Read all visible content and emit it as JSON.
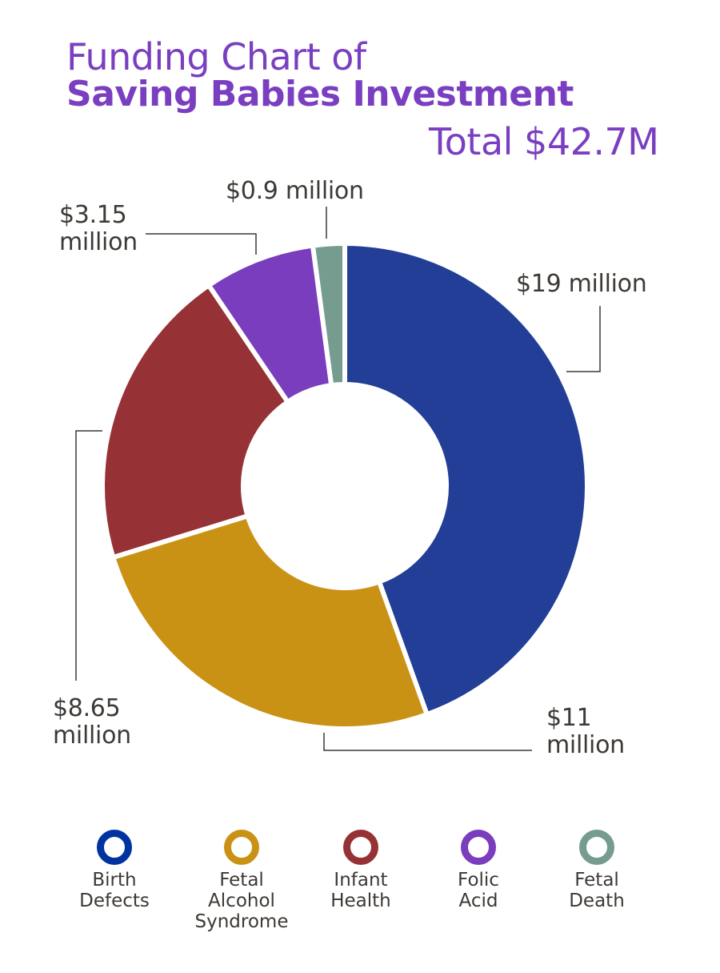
{
  "chart_data": {
    "type": "pie",
    "variant": "donut",
    "title": "Funding Chart of",
    "subtitle": "Saving Babies Investment",
    "total_label": "Total $42.7M",
    "categories": [
      "Birth Defects",
      "Fetal Alcohol Syndrome",
      "Infant Health",
      "Folic Acid",
      "Fetal Death"
    ],
    "values": [
      19,
      11,
      8.65,
      3.15,
      0.9
    ],
    "unit": "million USD",
    "data_labels": [
      "$19 million",
      "$11 million",
      "$8.65 million",
      "$3.15 million",
      "$0.9 million"
    ],
    "colors": [
      "#223e96",
      "#c99214",
      "#963236",
      "#793dbd",
      "#759c8e"
    ],
    "legend_colors": [
      "#0033a0",
      "#c99214",
      "#963236",
      "#793dbd",
      "#759c8e"
    ],
    "legend_placement": "bottom",
    "start": "12 o'clock, clockwise"
  }
}
